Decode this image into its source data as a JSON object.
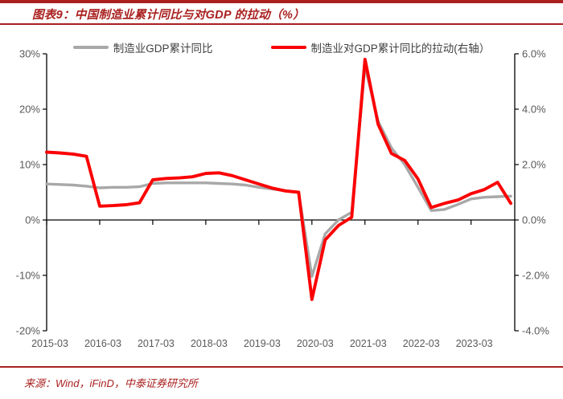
{
  "title": {
    "text": "图表9：中国制造业累计同比与对GDP 的拉动（%）"
  },
  "legend": [
    {
      "label": "制造业GDP累计同比",
      "color": "#a8a8a8"
    },
    {
      "label": "制造业对GDP累计同比的拉动(右轴）",
      "color": "#fb0000"
    }
  ],
  "footer": {
    "source_text": "来源：Wind，iFinD，中泰证券研究所"
  },
  "colors": {
    "brand_red": "#a9201f",
    "series_red": "#fb0000",
    "series_gray": "#a8a8a8",
    "axis_line": "#000000",
    "tick_label": "#595959"
  },
  "chart_data": {
    "type": "line",
    "title": "中国制造业累计同比与对GDP的拉动（%）",
    "x": [
      "2015-03",
      "2015-06",
      "2015-09",
      "2015-12",
      "2016-03",
      "2016-06",
      "2016-09",
      "2016-12",
      "2017-03",
      "2017-06",
      "2017-09",
      "2017-12",
      "2018-03",
      "2018-06",
      "2018-09",
      "2018-12",
      "2019-03",
      "2019-06",
      "2019-09",
      "2019-12",
      "2020-03",
      "2020-06",
      "2020-09",
      "2020-12",
      "2021-03",
      "2021-06",
      "2021-09",
      "2021-12",
      "2022-03",
      "2022-06",
      "2022-09",
      "2022-12",
      "2023-03",
      "2023-06",
      "2023-09",
      "2023-12"
    ],
    "x_tick_labels": [
      "2015-03",
      "2016-03",
      "2017-03",
      "2018-03",
      "2019-03",
      "2020-03",
      "2021-03",
      "2022-03",
      "2023-03"
    ],
    "series": [
      {
        "name": "制造业GDP累计同比",
        "axis": "left",
        "color": "#a8a8a8",
        "values": [
          6.5,
          6.4,
          6.3,
          6.1,
          5.8,
          5.9,
          5.9,
          6.0,
          6.6,
          6.7,
          6.7,
          6.7,
          6.7,
          6.6,
          6.5,
          6.3,
          5.9,
          5.6,
          5.3,
          5.0,
          -10.2,
          -2.5,
          0.0,
          1.4,
          27.8,
          17.8,
          13.0,
          10.0,
          5.9,
          1.7,
          1.9,
          2.8,
          3.8,
          4.1,
          4.2,
          4.3
        ]
      },
      {
        "name": "制造业对GDP累计同比的拉动(右轴）",
        "axis": "right",
        "color": "#fb0000",
        "values": [
          2.45,
          2.42,
          2.38,
          2.3,
          0.5,
          0.52,
          0.55,
          0.62,
          1.45,
          1.5,
          1.52,
          1.56,
          1.68,
          1.7,
          1.6,
          1.45,
          1.3,
          1.15,
          1.05,
          1.0,
          -2.87,
          -0.72,
          -0.2,
          0.1,
          5.8,
          3.45,
          2.4,
          2.15,
          1.48,
          0.45,
          0.6,
          0.72,
          0.95,
          1.1,
          1.36,
          0.6
        ]
      }
    ],
    "left_axis": {
      "ticks": [
        "30%",
        "20%",
        "10%",
        "0%",
        "-10%",
        "-20%"
      ],
      "max": 30,
      "min": -20
    },
    "right_axis": {
      "ticks": [
        "6.0%",
        "4.0%",
        "2.0%",
        "0.0%",
        "-2.0%",
        "-4.0%"
      ],
      "max": 6,
      "min": -4
    },
    "grid": false,
    "legend_position": "top"
  }
}
